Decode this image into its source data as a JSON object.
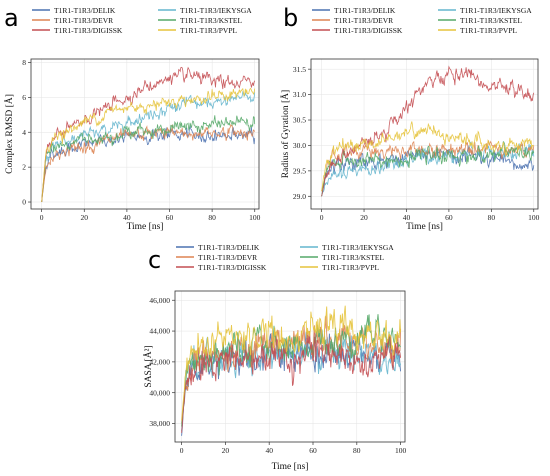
{
  "colors": {
    "DELIK": "#4c72b0",
    "IEKYSGA": "#64b5cd",
    "DEVR": "#dd8452",
    "KSTEL": "#55a868",
    "DIGISSK": "#c44e52",
    "PVPL": "#e5c33b"
  },
  "legend": [
    "T1R1-T1R3/DELIK",
    "T1R1-T1R3/IEKYSGA",
    "T1R1-T1R3/DEVR",
    "T1R1-T1R3/KSTEL",
    "T1R1-T1R3/DIGISSK",
    "T1R1-T1R3/PVPL"
  ],
  "chart_data": [
    {
      "panel": "a",
      "type": "line",
      "xlabel": "Time [ns]",
      "ylabel": "Complex RMSD [Å]",
      "xlim": [
        -5,
        102
      ],
      "ylim": [
        -0.4,
        8.2
      ],
      "xticks": [
        0,
        20,
        40,
        60,
        80,
        100
      ],
      "yticks": [
        0,
        2,
        4,
        6,
        8
      ],
      "x": [
        0,
        2,
        5,
        10,
        20,
        30,
        40,
        50,
        60,
        70,
        80,
        90,
        100
      ],
      "series": [
        {
          "name": "T1R1-T1R3/DELIK",
          "key": "DELIK",
          "values": [
            0,
            2.2,
            2.7,
            3.0,
            3.3,
            3.5,
            3.7,
            3.8,
            3.9,
            3.8,
            3.8,
            3.9,
            3.7
          ]
        },
        {
          "name": "T1R1-T1R3/IEKYSGA",
          "key": "IEKYSGA",
          "values": [
            0,
            2.6,
            3.2,
            3.5,
            3.8,
            4.1,
            4.6,
            5.0,
            5.4,
            5.7,
            5.5,
            6.0,
            6.1
          ]
        },
        {
          "name": "T1R1-T1R3/DEVR",
          "key": "DEVR",
          "values": [
            0,
            2.0,
            2.6,
            2.9,
            3.2,
            3.5,
            3.7,
            3.9,
            4.0,
            3.9,
            4.0,
            4.0,
            4.0
          ]
        },
        {
          "name": "T1R1-T1R3/KSTEL",
          "key": "KSTEL",
          "values": [
            0,
            2.5,
            3.0,
            3.3,
            3.6,
            3.8,
            4.0,
            4.1,
            4.2,
            4.3,
            4.4,
            4.6,
            4.7
          ]
        },
        {
          "name": "T1R1-T1R3/DIGISSK",
          "key": "DIGISSK",
          "values": [
            0,
            2.8,
            3.5,
            4.0,
            4.7,
            5.4,
            6.0,
            6.6,
            7.1,
            7.2,
            6.9,
            6.8,
            6.9
          ]
        },
        {
          "name": "T1R1-T1R3/PVPL",
          "key": "PVPL",
          "values": [
            0,
            3.0,
            3.6,
            3.9,
            4.6,
            5.1,
            5.4,
            5.6,
            5.8,
            5.9,
            6.0,
            6.2,
            6.3
          ]
        }
      ]
    },
    {
      "panel": "b",
      "type": "line",
      "xlabel": "Time [ns]",
      "ylabel": "Radius of Gyration [Å]",
      "xlim": [
        -5,
        102
      ],
      "ylim": [
        28.75,
        31.7
      ],
      "xticks": [
        0,
        20,
        40,
        60,
        80,
        100
      ],
      "yticks": [
        29.0,
        29.5,
        30.0,
        30.5,
        31.0,
        31.5
      ],
      "x": [
        0,
        2,
        5,
        10,
        20,
        30,
        40,
        50,
        60,
        70,
        80,
        90,
        100
      ],
      "series": [
        {
          "name": "T1R1-T1R3/DELIK",
          "key": "DELIK",
          "values": [
            29.0,
            29.4,
            29.6,
            29.6,
            29.7,
            29.7,
            29.8,
            29.8,
            29.8,
            29.8,
            29.7,
            29.6,
            29.6
          ]
        },
        {
          "name": "T1R1-T1R3/IEKYSGA",
          "key": "IEKYSGA",
          "values": [
            29.0,
            29.3,
            29.4,
            29.4,
            29.5,
            29.6,
            29.7,
            29.8,
            29.8,
            29.9,
            29.9,
            29.8,
            29.9
          ]
        },
        {
          "name": "T1R1-T1R3/DEVR",
          "key": "DEVR",
          "values": [
            29.1,
            29.5,
            29.7,
            29.8,
            29.9,
            29.9,
            29.9,
            29.9,
            29.9,
            30.0,
            30.0,
            29.9,
            29.9
          ]
        },
        {
          "name": "T1R1-T1R3/KSTEL",
          "key": "KSTEL",
          "values": [
            29.0,
            29.5,
            29.6,
            29.7,
            29.7,
            29.7,
            29.7,
            29.8,
            29.8,
            29.8,
            29.8,
            29.9,
            29.8
          ]
        },
        {
          "name": "T1R1-T1R3/DIGISSK",
          "key": "DIGISSK",
          "values": [
            29.0,
            29.4,
            29.6,
            29.8,
            30.0,
            30.3,
            30.8,
            31.2,
            31.4,
            31.4,
            31.1,
            31.1,
            31.0
          ]
        },
        {
          "name": "T1R1-T1R3/PVPL",
          "key": "PVPL",
          "values": [
            29.1,
            29.6,
            29.9,
            30.0,
            30.0,
            30.1,
            30.3,
            30.3,
            30.2,
            30.1,
            30.0,
            30.0,
            30.1
          ]
        }
      ]
    },
    {
      "panel": "c",
      "type": "line",
      "xlabel": "Time [ns]",
      "ylabel": "SASA [Å²]",
      "xlim": [
        -3,
        102
      ],
      "ylim": [
        36800,
        46600
      ],
      "xticks": [
        0,
        20,
        40,
        60,
        80,
        100
      ],
      "yticks": [
        38000,
        40000,
        42000,
        44000,
        46000
      ],
      "ytick_labels": [
        "38,000",
        "40,000",
        "42,000",
        "44,000",
        "46,000"
      ],
      "x": [
        0,
        2,
        5,
        10,
        20,
        30,
        40,
        50,
        60,
        70,
        80,
        90,
        100
      ],
      "series": [
        {
          "name": "T1R1-T1R3/DELIK",
          "key": "DELIK",
          "values": [
            37200,
            40500,
            41500,
            41900,
            42100,
            42200,
            42300,
            42300,
            42400,
            42400,
            42300,
            42200,
            42200
          ]
        },
        {
          "name": "T1R1-T1R3/IEKYSGA",
          "key": "IEKYSGA",
          "values": [
            37500,
            40800,
            41700,
            42000,
            42300,
            42400,
            42600,
            42700,
            42800,
            42700,
            42600,
            42500,
            41700
          ]
        },
        {
          "name": "T1R1-T1R3/DEVR",
          "key": "DEVR",
          "values": [
            38000,
            41000,
            41800,
            42200,
            42700,
            43000,
            43200,
            43300,
            43400,
            43300,
            43200,
            43000,
            42900
          ]
        },
        {
          "name": "T1R1-T1R3/KSTEL",
          "key": "KSTEL",
          "values": [
            37800,
            41200,
            42000,
            42300,
            42600,
            42800,
            43000,
            43100,
            43200,
            43300,
            43600,
            44400,
            42800
          ]
        },
        {
          "name": "T1R1-T1R3/DIGISSK",
          "key": "DIGISSK",
          "values": [
            37400,
            40800,
            41600,
            42000,
            42200,
            42300,
            42300,
            42400,
            42400,
            42300,
            42200,
            42300,
            42200
          ]
        },
        {
          "name": "T1R1-T1R3/PVPL",
          "key": "PVPL",
          "values": [
            38200,
            41500,
            42300,
            42700,
            43300,
            43600,
            43800,
            43900,
            44300,
            44300,
            43800,
            43600,
            43700
          ]
        }
      ]
    }
  ]
}
